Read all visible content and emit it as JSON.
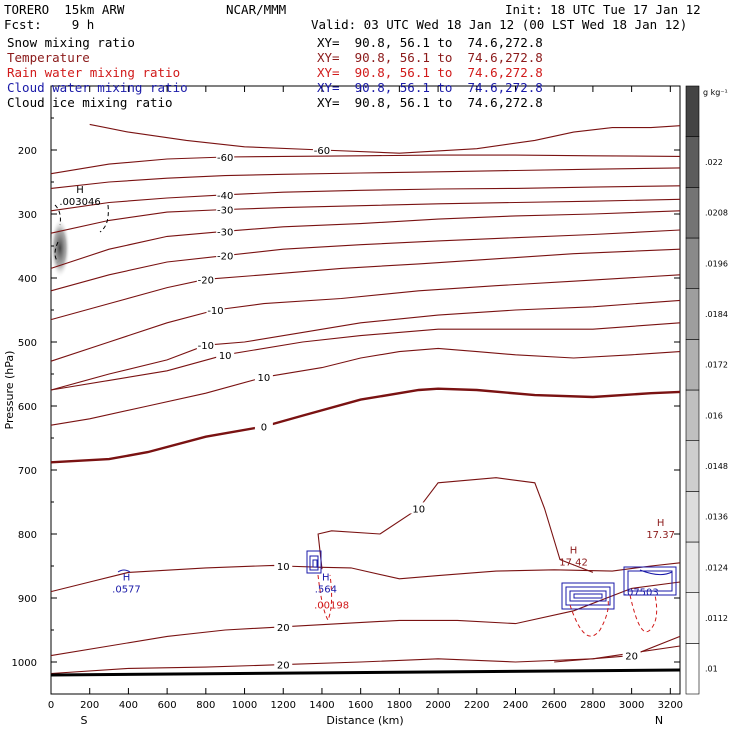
{
  "header": {
    "model": "TORERO  15km ARW",
    "center": "NCAR/MMM",
    "init": "Init: 18 UTC Tue 17 Jan 12",
    "fcst": "Fcst:    9 h",
    "valid": "Valid: 03 UTC Wed 18 Jan 12 (00 LST Wed 18 Jan 12)"
  },
  "fields": [
    {
      "label": "Snow mixing ratio",
      "xy": "XY=  90.8, 56.1 to  74.6,272.8",
      "color": "#000000"
    },
    {
      "label": "Temperature",
      "xy": "XY=  90.8, 56.1 to  74.6,272.8",
      "color": "#8b1a1a"
    },
    {
      "label": "Rain water mixing ratio",
      "xy": "XY=  90.8, 56.1 to  74.6,272.8",
      "color": "#d11a1a"
    },
    {
      "label": "Cloud water mixing ratio",
      "xy": "XY=  90.8, 56.1 to  74.6,272.8",
      "color": "#1a1aa8"
    },
    {
      "label": "Cloud ice mixing ratio",
      "xy": "XY=  90.8, 56.1 to  74.6,272.8",
      "color": "#000000"
    }
  ],
  "chart_data": {
    "type": "contour_cross_section",
    "xlabel": "Distance (km)",
    "ylabel": "Pressure (hPa)",
    "xlim": [
      0,
      3250
    ],
    "ylim": [
      1050,
      100
    ],
    "x_ticks": [
      0,
      200,
      400,
      600,
      800,
      1000,
      1200,
      1400,
      1600,
      1800,
      2000,
      2200,
      2400,
      2600,
      2800,
      3000,
      3200
    ],
    "y_ticks": [
      200,
      300,
      400,
      500,
      600,
      700,
      800,
      900,
      1000
    ],
    "x_end_labels": {
      "left": "S",
      "right": "N"
    },
    "colorbar": {
      "unit": "g kg⁻¹",
      "ticks": [
        ".01",
        ".0112",
        ".0124",
        ".0136",
        ".0148",
        ".016",
        ".0172",
        ".0184",
        ".0196",
        ".0208",
        ".022"
      ],
      "colors": [
        "#ffffff",
        "#f4f4f4",
        "#e8e8e8",
        "#dcdcdc",
        "#cecece",
        "#c0c0c0",
        "#b0b0b0",
        "#9e9e9e",
        "#8a8a8a",
        "#747474",
        "#5c5c5c",
        "#444444"
      ]
    },
    "temperature_contours": [
      {
        "level": 20,
        "label": "20",
        "points": [
          [
            0,
            990
          ],
          [
            300,
            975
          ],
          [
            600,
            960
          ],
          [
            900,
            950
          ],
          [
            1200,
            945
          ],
          [
            1500,
            940
          ],
          [
            1800,
            935
          ],
          [
            2100,
            935
          ],
          [
            2400,
            940
          ],
          [
            2700,
            920
          ],
          [
            3000,
            885
          ],
          [
            3250,
            875
          ]
        ]
      },
      {
        "level": 20,
        "label": "20",
        "points": [
          [
            0,
            1018
          ],
          [
            400,
            1010
          ],
          [
            800,
            1008
          ],
          [
            1200,
            1004
          ],
          [
            1600,
            1000
          ],
          [
            2000,
            995
          ],
          [
            2400,
            1000
          ],
          [
            2800,
            995
          ],
          [
            3250,
            975
          ]
        ]
      },
      {
        "level": 20,
        "label": "20",
        "points": [
          [
            2600,
            1000
          ],
          [
            3000,
            990
          ],
          [
            3250,
            960
          ]
        ]
      },
      {
        "level": 10,
        "label": "10",
        "points": [
          [
            0,
            890
          ],
          [
            200,
            875
          ],
          [
            400,
            860
          ],
          [
            800,
            853
          ],
          [
            1150,
            849
          ],
          [
            1200,
            850
          ],
          [
            1400,
            852
          ],
          [
            1550,
            853
          ],
          [
            1800,
            870
          ],
          [
            2000,
            865
          ],
          [
            2300,
            858
          ],
          [
            2600,
            856
          ],
          [
            2900,
            858
          ],
          [
            3100,
            850
          ],
          [
            3250,
            845
          ]
        ]
      },
      {
        "level": 10,
        "label": "10",
        "points": [
          [
            1400,
            855
          ],
          [
            1380,
            800
          ],
          [
            1450,
            795
          ],
          [
            1700,
            800
          ],
          [
            1900,
            760
          ],
          [
            2000,
            720
          ],
          [
            2300,
            712
          ],
          [
            2500,
            720
          ],
          [
            2550,
            760
          ],
          [
            2600,
            810
          ],
          [
            2630,
            840
          ],
          [
            2800,
            860
          ]
        ]
      },
      {
        "level": 10,
        "label": "10",
        "points": [
          [
            0,
            630
          ],
          [
            200,
            620
          ],
          [
            500,
            600
          ],
          [
            800,
            580
          ],
          [
            1100,
            555
          ],
          [
            1400,
            540
          ],
          [
            1600,
            525
          ],
          [
            1800,
            515
          ],
          [
            2000,
            510
          ],
          [
            2200,
            515
          ],
          [
            2400,
            520
          ],
          [
            2700,
            525
          ],
          [
            3000,
            520
          ],
          [
            3250,
            515
          ]
        ]
      },
      {
        "level": 10,
        "label": "10",
        "points": [
          [
            0,
            575
          ],
          [
            300,
            560
          ],
          [
            600,
            545
          ],
          [
            900,
            520
          ],
          [
            1300,
            500
          ],
          [
            1600,
            490
          ],
          [
            2000,
            480
          ],
          [
            2400,
            480
          ],
          [
            2800,
            480
          ],
          [
            3250,
            470
          ]
        ]
      },
      {
        "level": 0,
        "label": "0",
        "points": [
          [
            0,
            688
          ],
          [
            300,
            683
          ],
          [
            500,
            672
          ],
          [
            800,
            648
          ],
          [
            1100,
            632
          ],
          [
            1300,
            615
          ],
          [
            1600,
            590
          ],
          [
            1900,
            575
          ],
          [
            2000,
            573
          ],
          [
            2200,
            575
          ],
          [
            2500,
            583
          ],
          [
            2800,
            586
          ],
          [
            3100,
            580
          ],
          [
            3250,
            578
          ]
        ],
        "bold": true
      },
      {
        "level": -10,
        "label": "-10",
        "points": [
          [
            0,
            575
          ],
          [
            300,
            550
          ],
          [
            600,
            528
          ],
          [
            800,
            505
          ],
          [
            1000,
            500
          ],
          [
            1300,
            485
          ],
          [
            1600,
            470
          ],
          [
            2000,
            458
          ],
          [
            2400,
            450
          ],
          [
            2800,
            445
          ],
          [
            3250,
            435
          ]
        ]
      },
      {
        "level": -10,
        "label": "-10",
        "points": [
          [
            0,
            530
          ],
          [
            300,
            500
          ],
          [
            600,
            470
          ],
          [
            850,
            450
          ],
          [
            1100,
            440
          ],
          [
            1500,
            432
          ],
          [
            1900,
            420
          ],
          [
            2300,
            412
          ],
          [
            2700,
            405
          ],
          [
            3250,
            395
          ]
        ]
      },
      {
        "level": -20,
        "label": "-20",
        "points": [
          [
            0,
            465
          ],
          [
            300,
            440
          ],
          [
            600,
            415
          ],
          [
            800,
            402
          ],
          [
            1100,
            395
          ],
          [
            1500,
            385
          ],
          [
            1900,
            378
          ],
          [
            2300,
            370
          ],
          [
            2700,
            362
          ],
          [
            3250,
            355
          ]
        ]
      },
      {
        "level": -20,
        "label": "-20",
        "points": [
          [
            0,
            420
          ],
          [
            300,
            395
          ],
          [
            600,
            375
          ],
          [
            900,
            365
          ],
          [
            1200,
            355
          ],
          [
            1600,
            348
          ],
          [
            2000,
            342
          ],
          [
            2400,
            337
          ],
          [
            2800,
            332
          ],
          [
            3250,
            325
          ]
        ]
      },
      {
        "level": -30,
        "label": "-30",
        "points": [
          [
            0,
            385
          ],
          [
            300,
            355
          ],
          [
            600,
            335
          ],
          [
            900,
            327
          ],
          [
            1200,
            320
          ],
          [
            1600,
            315
          ],
          [
            2000,
            308
          ],
          [
            2400,
            303
          ],
          [
            2800,
            300
          ],
          [
            3250,
            295
          ]
        ]
      },
      {
        "level": -30,
        "label": "-30",
        "points": [
          [
            0,
            330
          ],
          [
            300,
            310
          ],
          [
            600,
            297
          ],
          [
            900,
            293
          ],
          [
            1200,
            290
          ],
          [
            1600,
            287
          ],
          [
            2000,
            284
          ],
          [
            2400,
            282
          ],
          [
            2800,
            280
          ],
          [
            3250,
            277
          ]
        ]
      },
      {
        "level": -40,
        "label": "-40",
        "points": [
          [
            0,
            295
          ],
          [
            300,
            282
          ],
          [
            600,
            275
          ],
          [
            900,
            270
          ],
          [
            1200,
            266
          ],
          [
            1600,
            263
          ],
          [
            2000,
            261
          ],
          [
            2400,
            260
          ],
          [
            2800,
            258
          ],
          [
            3250,
            256
          ]
        ]
      },
      {
        "level": -50,
        "label": "",
        "points": [
          [
            0,
            260
          ],
          [
            300,
            250
          ],
          [
            600,
            244
          ],
          [
            900,
            240
          ],
          [
            1200,
            238
          ],
          [
            1600,
            236
          ],
          [
            2000,
            234
          ],
          [
            2400,
            232
          ],
          [
            2800,
            230
          ],
          [
            3250,
            228
          ]
        ]
      },
      {
        "level": -60,
        "label": "-60",
        "points": [
          [
            0,
            237
          ],
          [
            300,
            222
          ],
          [
            600,
            214
          ],
          [
            900,
            211
          ],
          [
            1200,
            210
          ],
          [
            1600,
            209
          ],
          [
            2000,
            208
          ],
          [
            2400,
            208
          ],
          [
            2800,
            209
          ],
          [
            3250,
            210
          ]
        ]
      },
      {
        "level": -60,
        "label": "-60",
        "points": [
          [
            200,
            160
          ],
          [
            400,
            172
          ],
          [
            700,
            185
          ],
          [
            1000,
            195
          ],
          [
            1400,
            200
          ],
          [
            1800,
            205
          ],
          [
            2200,
            198
          ],
          [
            2500,
            185
          ],
          [
            2700,
            172
          ],
          [
            2900,
            165
          ],
          [
            3100,
            165
          ],
          [
            3250,
            162
          ]
        ]
      }
    ],
    "maxima_labels": [
      {
        "text": "H",
        "value": ".003046",
        "x": 150,
        "y": 280,
        "color": "#000000"
      },
      {
        "text": "H",
        "value": ".0577",
        "x": 390,
        "y": 885,
        "color": "#1a1aa8"
      },
      {
        "text": "H",
        "value": ".564",
        "x": 1420,
        "y": 885,
        "color": "#1a1aa8"
      },
      {
        "text": "",
        "value": ".00198",
        "x": 1450,
        "y": 910,
        "color": "#d11a1a"
      },
      {
        "text": "H",
        "value": "17.42",
        "x": 2700,
        "y": 843,
        "color": "#8b1a1a"
      },
      {
        "text": "H",
        "value": "17.37",
        "x": 3150,
        "y": 800,
        "color": "#8b1a1a"
      },
      {
        "text": "",
        "value": ".07503",
        "x": 3050,
        "y": 890,
        "color": "#1a1aa8"
      }
    ]
  }
}
